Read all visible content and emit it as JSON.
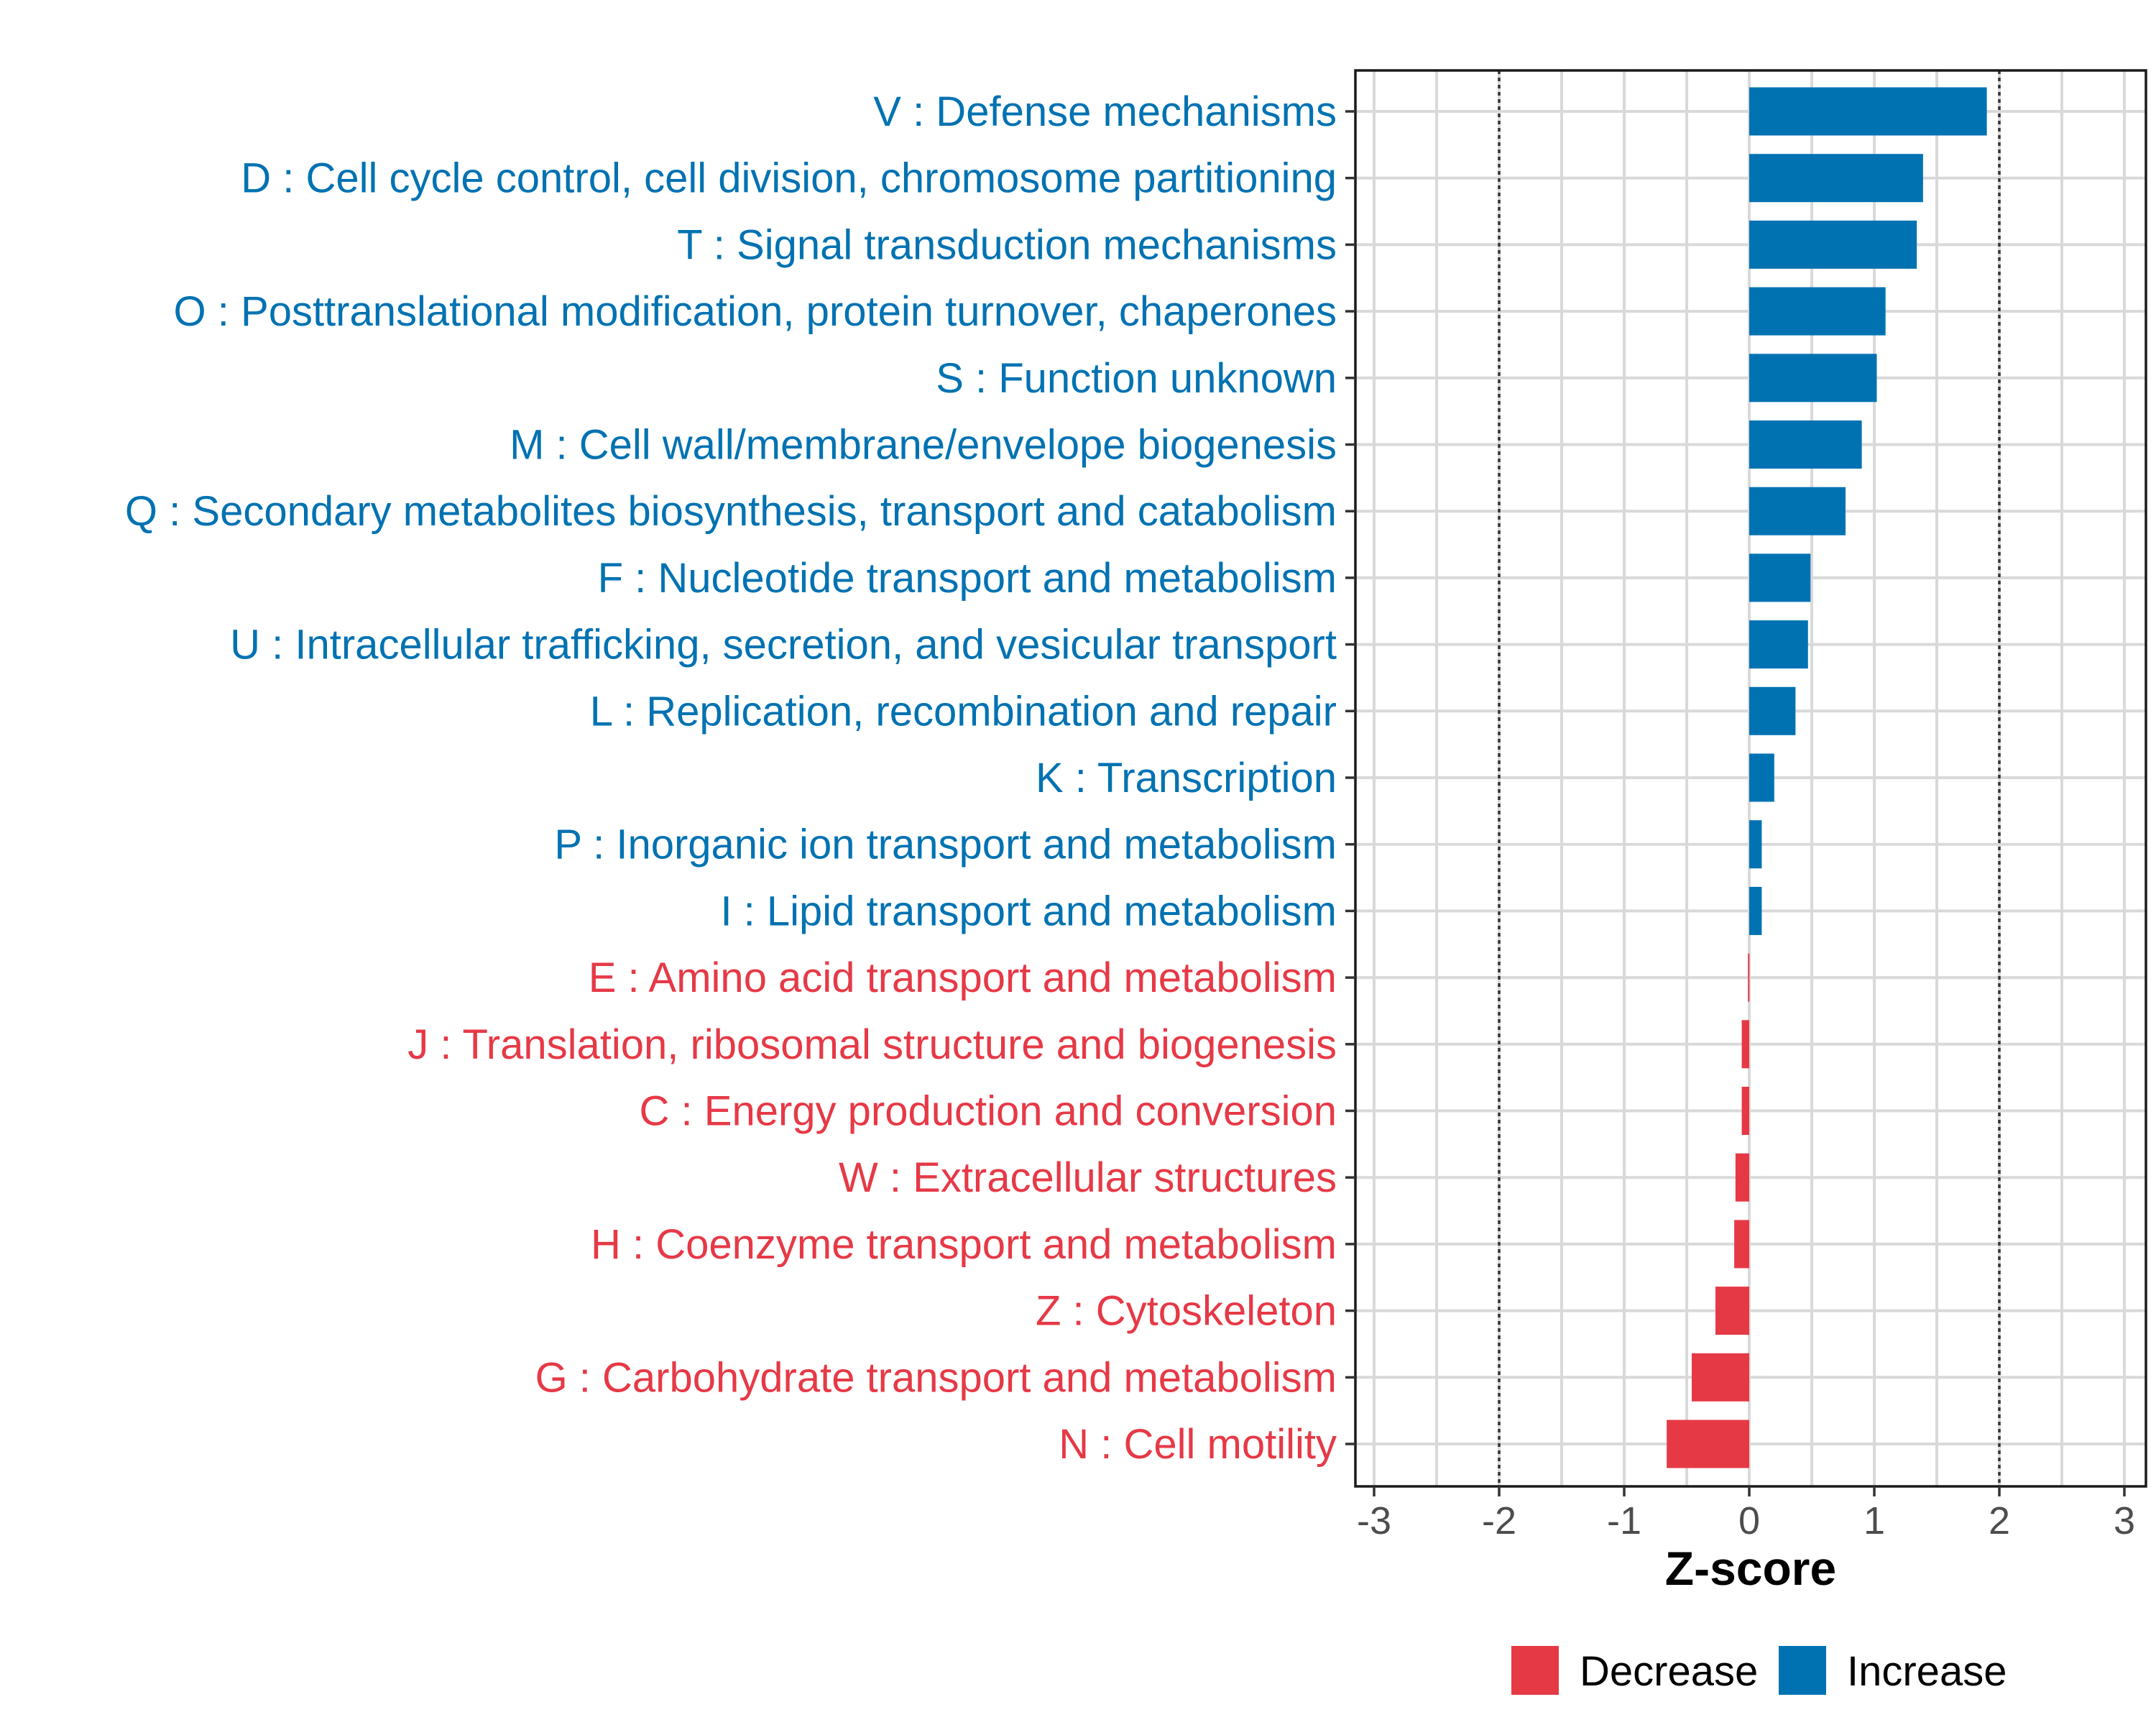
{
  "chart_data": {
    "type": "bar",
    "orientation": "horizontal",
    "title": "",
    "xlabel": "Z-score",
    "ylabel": "",
    "xlim": [
      -3,
      3
    ],
    "x_ticks": [
      "-3",
      "-2",
      "-1",
      "0",
      "1",
      "2",
      "3"
    ],
    "reference_lines": [
      -2,
      2
    ],
    "grid": true,
    "legend_position": "bottom",
    "colors": {
      "Increase": "#0072B2",
      "Decrease": "#E63946"
    },
    "categories": [
      "V : Defense mechanisms",
      "D : Cell cycle control, cell division, chromosome partitioning",
      "T : Signal transduction mechanisms",
      "O : Posttranslational modification, protein turnover, chaperones",
      "S : Function unknown",
      "M : Cell wall/membrane/envelope biogenesis",
      "Q : Secondary metabolites biosynthesis, transport and catabolism",
      "F : Nucleotide transport and metabolism",
      "U : Intracellular trafficking, secretion, and vesicular transport",
      "L : Replication, recombination and repair",
      "K : Transcription",
      "P : Inorganic ion transport and metabolism",
      "I : Lipid transport and metabolism",
      "E : Amino acid transport and metabolism",
      "J : Translation, ribosomal structure and biogenesis",
      "C : Energy production and conversion",
      "W : Extracellular structures",
      "H : Coenzyme transport and metabolism",
      "Z : Cytoskeleton",
      "G : Carbohydrate transport and metabolism",
      "N : Cell motility"
    ],
    "values": [
      1.9,
      1.39,
      1.34,
      1.09,
      1.02,
      0.9,
      0.77,
      0.49,
      0.47,
      0.37,
      0.2,
      0.1,
      0.1,
      -0.01,
      -0.06,
      -0.06,
      -0.11,
      -0.12,
      -0.27,
      -0.46,
      -0.66
    ],
    "groups": [
      "Increase",
      "Increase",
      "Increase",
      "Increase",
      "Increase",
      "Increase",
      "Increase",
      "Increase",
      "Increase",
      "Increase",
      "Increase",
      "Increase",
      "Increase",
      "Decrease",
      "Decrease",
      "Decrease",
      "Decrease",
      "Decrease",
      "Decrease",
      "Decrease",
      "Decrease"
    ],
    "legend": [
      {
        "label": "Decrease",
        "color": "#E63946"
      },
      {
        "label": "Increase",
        "color": "#0072B2"
      }
    ]
  }
}
